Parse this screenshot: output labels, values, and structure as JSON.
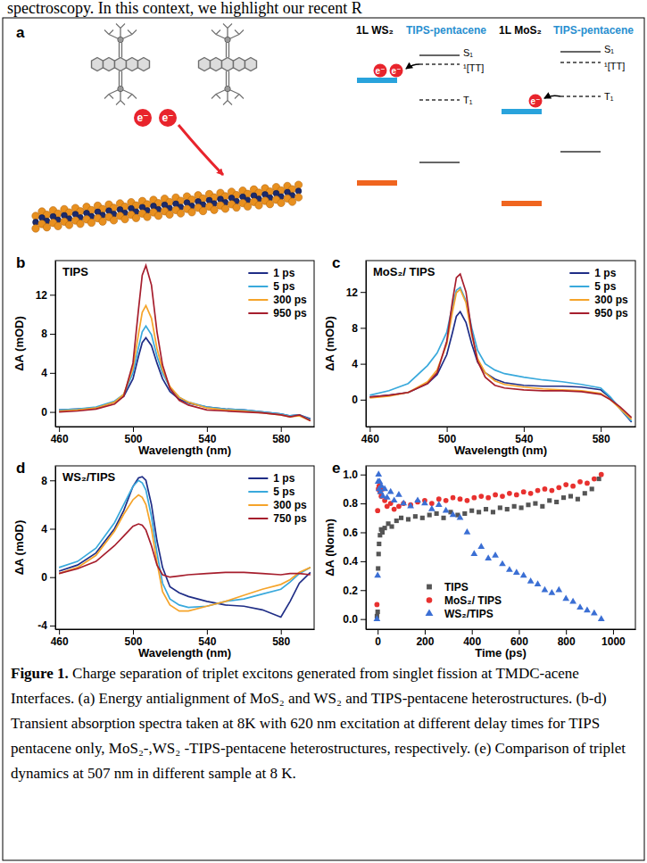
{
  "page_text": "spectroscopy. In this context, we highlight our recent R",
  "diagram": {
    "panel_label": "a",
    "groups": [
      {
        "tmdc": "1L WS₂",
        "molecule": "TIPS-pentacene"
      },
      {
        "tmdc": "1L MoS₂",
        "molecule": "TIPS-pentacene"
      }
    ],
    "levels": [
      "S₁",
      "¹[TT]",
      "T₁"
    ],
    "electron": "e⁻"
  },
  "chart_data": [
    {
      "panel_label": "b",
      "type": "line",
      "title": "TIPS",
      "x_label": "Wavelength (nm)",
      "y_label": "ΔA (mOD)",
      "x": [
        460,
        470,
        480,
        490,
        495,
        500,
        503,
        505,
        507,
        510,
        513,
        516,
        520,
        525,
        530,
        540,
        550,
        560,
        570,
        580,
        585,
        590,
        596
      ],
      "xlim": [
        458,
        598
      ],
      "xticks": [
        460,
        500,
        540,
        580
      ],
      "ylim": [
        -1.5,
        15.5
      ],
      "yticks": [
        0,
        4,
        8,
        12
      ],
      "legend": "upper right",
      "series": [
        {
          "name": "1 ps",
          "color": "#1f2d86",
          "values": [
            0.2,
            0.3,
            0.4,
            1.0,
            1.6,
            3.4,
            5.7,
            7.1,
            7.6,
            6.8,
            5.0,
            3.4,
            2.1,
            1.3,
            0.9,
            0.5,
            0.3,
            0.2,
            0.0,
            -0.2,
            -0.4,
            -0.3,
            -0.7
          ]
        },
        {
          "name": "5 ps",
          "color": "#39a9dc",
          "values": [
            0.2,
            0.3,
            0.5,
            1.1,
            1.8,
            4.0,
            6.6,
            8.2,
            8.8,
            7.9,
            5.7,
            4.0,
            2.5,
            1.5,
            1.0,
            0.5,
            0.3,
            0.2,
            0.0,
            -0.2,
            -0.4,
            -0.3,
            -0.8
          ]
        },
        {
          "name": "300 ps",
          "color": "#f5a42a",
          "values": [
            0.1,
            0.2,
            0.4,
            1.0,
            1.8,
            4.5,
            8.0,
            10.2,
            10.9,
            9.6,
            6.5,
            4.3,
            2.6,
            1.5,
            1.0,
            0.4,
            0.2,
            0.1,
            -0.1,
            -0.3,
            -0.5,
            -0.4,
            -0.9
          ]
        },
        {
          "name": "950 ps",
          "color": "#a61e2d",
          "values": [
            0.0,
            0.1,
            0.3,
            0.8,
            1.6,
            5.0,
            10.5,
            14.0,
            15.0,
            13.0,
            8.2,
            4.8,
            2.4,
            1.2,
            0.7,
            0.2,
            0.1,
            0.0,
            -0.1,
            -0.3,
            -0.5,
            -0.3,
            -0.9
          ]
        }
      ]
    },
    {
      "panel_label": "c",
      "type": "line",
      "title": "MoS₂/ TIPS",
      "x_label": "Wavelength (nm)",
      "y_label": "ΔA (mOD)",
      "x": [
        460,
        470,
        480,
        490,
        495,
        500,
        503,
        505,
        507,
        510,
        513,
        516,
        520,
        525,
        530,
        540,
        550,
        560,
        570,
        580,
        585,
        590,
        596
      ],
      "xlim": [
        458,
        598
      ],
      "xticks": [
        460,
        500,
        540,
        580
      ],
      "ylim": [
        -3,
        15.5
      ],
      "yticks": [
        0,
        4,
        8,
        12
      ],
      "legend": "upper right",
      "series": [
        {
          "name": "1 ps",
          "color": "#1f2d86",
          "values": [
            0.3,
            0.5,
            0.8,
            1.8,
            2.8,
            5.0,
            7.5,
            9.3,
            9.8,
            8.6,
            6.2,
            4.2,
            3.0,
            2.3,
            1.9,
            1.6,
            1.5,
            1.5,
            1.4,
            1.1,
            0.2,
            -1.0,
            -2.5
          ]
        },
        {
          "name": "5 ps",
          "color": "#39a9dc",
          "values": [
            0.5,
            1.0,
            1.8,
            3.8,
            5.2,
            7.5,
            10.5,
            12.2,
            12.5,
            11.0,
            8.0,
            5.5,
            4.0,
            3.3,
            2.9,
            2.5,
            2.2,
            2.0,
            1.7,
            1.3,
            0.3,
            -1.0,
            -2.4
          ]
        },
        {
          "name": "300 ps",
          "color": "#f5a42a",
          "values": [
            0.2,
            0.4,
            0.8,
            2.0,
            3.3,
            6.2,
            9.8,
            11.9,
            12.3,
            10.8,
            7.2,
            4.6,
            3.0,
            2.1,
            1.7,
            1.4,
            1.2,
            1.1,
            1.0,
            0.7,
            0.0,
            -1.0,
            -2.2
          ]
        },
        {
          "name": "950 ps",
          "color": "#a61e2d",
          "values": [
            0.3,
            0.5,
            0.8,
            1.8,
            3.0,
            6.5,
            11.0,
            13.6,
            14.0,
            12.0,
            7.5,
            4.3,
            2.5,
            1.6,
            1.3,
            1.1,
            1.0,
            1.0,
            0.9,
            0.6,
            0.0,
            -0.8,
            -2.0
          ]
        }
      ]
    },
    {
      "panel_label": "d",
      "type": "line",
      "title": "WS₂/TIPS",
      "x_label": "Wavelength (nm)",
      "y_label": "ΔA (mOD)",
      "x": [
        460,
        470,
        480,
        490,
        495,
        500,
        503,
        505,
        507,
        510,
        513,
        516,
        520,
        525,
        530,
        540,
        550,
        560,
        570,
        580,
        585,
        590,
        596
      ],
      "xlim": [
        458,
        598
      ],
      "xticks": [
        460,
        500,
        540,
        580
      ],
      "ylim": [
        -4.3,
        9.2
      ],
      "yticks": [
        -4,
        0,
        4,
        8
      ],
      "legend": "upper right",
      "series": [
        {
          "name": "1 ps",
          "color": "#1f2d86",
          "values": [
            0.5,
            1.0,
            2.0,
            4.0,
            5.5,
            7.5,
            8.2,
            8.3,
            8.0,
            6.0,
            3.0,
            0.8,
            -0.8,
            -1.3,
            -1.6,
            -2.0,
            -2.3,
            -2.4,
            -2.7,
            -3.3,
            -2.0,
            -0.5,
            0.4
          ]
        },
        {
          "name": "5 ps",
          "color": "#39a9dc",
          "values": [
            0.8,
            1.3,
            2.4,
            4.5,
            6.0,
            7.5,
            8.0,
            7.8,
            7.2,
            5.0,
            2.0,
            -0.5,
            -1.8,
            -2.3,
            -2.5,
            -2.4,
            -2.0,
            -1.8,
            -1.4,
            -1.0,
            -0.4,
            0.3,
            0.8
          ]
        },
        {
          "name": "300 ps",
          "color": "#f5a42a",
          "values": [
            0.3,
            0.8,
            1.8,
            3.8,
            5.2,
            6.4,
            6.8,
            6.6,
            6.0,
            4.0,
            1.2,
            -1.2,
            -2.3,
            -2.8,
            -2.8,
            -2.4,
            -2.0,
            -1.5,
            -1.0,
            -0.6,
            -0.2,
            0.4,
            0.8
          ]
        },
        {
          "name": "750 ps",
          "color": "#a61e2d",
          "values": [
            0.3,
            0.7,
            1.3,
            2.6,
            3.4,
            4.2,
            4.4,
            4.3,
            3.9,
            2.6,
            1.0,
            0.2,
            0.0,
            0.1,
            0.2,
            0.3,
            0.4,
            0.4,
            0.3,
            0.2,
            0.3,
            0.3,
            0.2
          ]
        }
      ]
    },
    {
      "panel_label": "e",
      "type": "scatter",
      "x_label": "Time (ps)",
      "y_label": "ΔA (Norm)",
      "xlim": [
        -50,
        1095
      ],
      "xticks": [
        0,
        200,
        400,
        600,
        800,
        1000
      ],
      "ylim": [
        -0.07,
        1.06
      ],
      "yticks": [
        {
          "value": 0,
          "label": "0.0"
        },
        {
          "value": 0.2,
          "label": "0.2"
        },
        {
          "value": 0.4,
          "label": "0.4"
        },
        {
          "value": 0.6,
          "label": "0.6"
        },
        {
          "value": 0.8,
          "label": "0.8"
        },
        {
          "value": 1,
          "label": "1.0"
        }
      ],
      "legend": "lower left",
      "series": [
        {
          "name": "TIPS",
          "color": "#555555",
          "marker": "square",
          "x": [
            -3,
            0,
            2,
            4,
            6,
            10,
            15,
            20,
            30,
            45,
            60,
            80,
            100,
            130,
            160,
            190,
            220,
            250,
            280,
            310,
            340,
            370,
            400,
            430,
            460,
            490,
            520,
            550,
            580,
            610,
            640,
            670,
            700,
            730,
            760,
            790,
            820,
            850,
            880,
            910,
            940
          ],
          "values": [
            0.02,
            0.05,
            0.35,
            0.45,
            0.52,
            0.58,
            0.62,
            0.6,
            0.63,
            0.66,
            0.64,
            0.68,
            0.7,
            0.69,
            0.71,
            0.7,
            0.72,
            0.73,
            0.7,
            0.74,
            0.72,
            0.73,
            0.75,
            0.74,
            0.76,
            0.74,
            0.77,
            0.76,
            0.78,
            0.77,
            0.79,
            0.8,
            0.78,
            0.82,
            0.81,
            0.84,
            0.85,
            0.83,
            0.87,
            0.9,
            0.97
          ]
        },
        {
          "name": "MoS₂/ TIPS",
          "color": "#e8312f",
          "marker": "circle",
          "x": [
            -3,
            0,
            3,
            6,
            10,
            15,
            20,
            30,
            40,
            55,
            70,
            90,
            110,
            140,
            170,
            200,
            230,
            260,
            290,
            320,
            350,
            380,
            410,
            440,
            470,
            500,
            530,
            560,
            590,
            620,
            650,
            680,
            710,
            740,
            770,
            800,
            830,
            860,
            890,
            920,
            950
          ],
          "values": [
            0.1,
            0.75,
            0.9,
            0.92,
            0.88,
            0.85,
            0.9,
            0.82,
            0.78,
            0.8,
            0.76,
            0.78,
            0.8,
            0.79,
            0.81,
            0.82,
            0.8,
            0.83,
            0.82,
            0.84,
            0.83,
            0.82,
            0.84,
            0.85,
            0.84,
            0.86,
            0.85,
            0.87,
            0.86,
            0.88,
            0.87,
            0.89,
            0.9,
            0.89,
            0.91,
            0.93,
            0.92,
            0.95,
            0.94,
            0.97,
            1.0
          ]
        },
        {
          "name": "WS₂/TIPS",
          "color": "#3b6fd4",
          "marker": "triangle",
          "x": [
            -3,
            0,
            2,
            4,
            6,
            8,
            12,
            16,
            22,
            30,
            40,
            55,
            70,
            90,
            110,
            140,
            170,
            200,
            230,
            260,
            290,
            320,
            350,
            380,
            410,
            440,
            470,
            500,
            530,
            560,
            590,
            620,
            650,
            680,
            710,
            740,
            770,
            800,
            830,
            860,
            890,
            920,
            950
          ],
          "values": [
            0.0,
            0.3,
            0.95,
            1.0,
            0.9,
            0.95,
            0.88,
            0.92,
            0.85,
            0.9,
            0.84,
            0.88,
            0.82,
            0.86,
            0.8,
            0.78,
            0.82,
            0.8,
            0.76,
            0.79,
            0.75,
            0.72,
            0.7,
            0.6,
            0.45,
            0.5,
            0.42,
            0.44,
            0.38,
            0.34,
            0.32,
            0.3,
            0.26,
            0.24,
            0.2,
            0.18,
            0.2,
            0.14,
            0.12,
            0.08,
            0.06,
            0.04,
            0.0
          ]
        }
      ]
    }
  ],
  "caption": {
    "label": "Figure 1.",
    "text": "Charge separation of triplet excitons generated from singlet fission at TMDC-acene Interfaces. (a) Energy antialignment of MoS₂ and WS₂ and TIPS-pentacene heterostructures. (b-d) Transient absorption spectra taken at 8K with 620 nm excitation at different delay times for TIPS pentacene only, MoS₂-,WS₂ -TIPS-pentacene heterostructures, respectively. (e) Comparison of triplet dynamics at 507 nm in different sample at 8 K."
  }
}
